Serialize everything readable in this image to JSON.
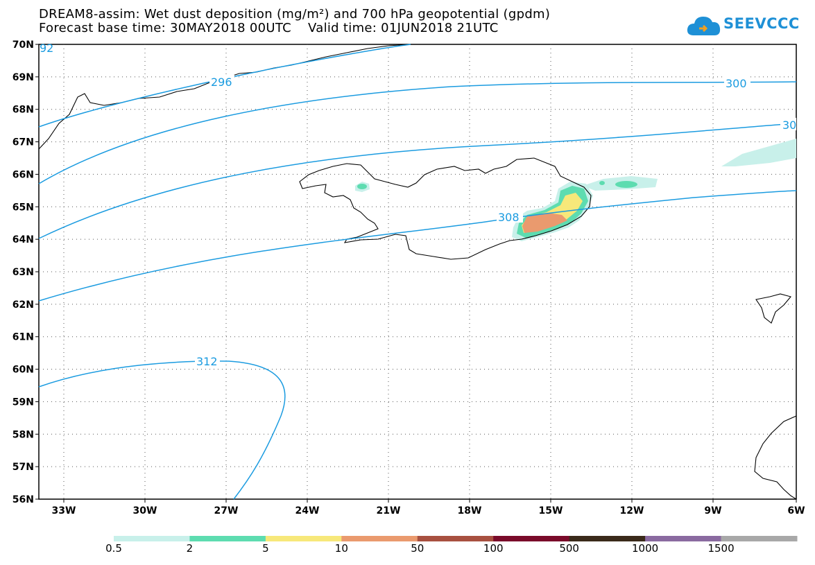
{
  "header": {
    "title_line1": "DREAM8-assim: Wet dust deposition (mg/m²) and 700 hPa geopotential (gpdm)",
    "title_line2": "Forecast base time: 30MAY2018 00UTC    Valid time: 01JUN2018 21UTC"
  },
  "logo": {
    "text": "SEEVCCC",
    "icon": "cloud-logo-icon",
    "color": "#1e90d6"
  },
  "map": {
    "lat_labels": [
      "70N",
      "69N",
      "68N",
      "67N",
      "66N",
      "65N",
      "64N",
      "63N",
      "62N",
      "61N",
      "60N",
      "59N",
      "58N",
      "57N",
      "56N"
    ],
    "lon_labels": [
      "33W",
      "30W",
      "27W",
      "24W",
      "21W",
      "18W",
      "15W",
      "12W",
      "9W",
      "6W"
    ],
    "contour_color": "#1a9be0",
    "contour_labels": [
      "92",
      "296",
      "300",
      "30",
      "308",
      "312"
    ]
  },
  "colorbar": {
    "labels": [
      "0.5",
      "2",
      "5",
      "10",
      "50",
      "100",
      "500",
      "1000",
      "1500"
    ],
    "colors": [
      "#c8f0ea",
      "#5ddcb0",
      "#f7e87a",
      "#ea9a6e",
      "#a85040",
      "#7a0a2a",
      "#3a2a1a",
      "#8a6aa0",
      "#a8a8a8"
    ]
  }
}
